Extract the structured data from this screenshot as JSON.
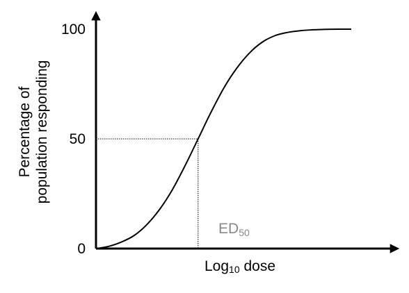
{
  "chart_data": {
    "type": "line",
    "ylabel_lines": [
      "Percentage of",
      "population responding"
    ],
    "xlabel": {
      "base": "Log",
      "sub": "10",
      "rest": " dose"
    },
    "y_ticks": [
      "100",
      "50",
      "0"
    ],
    "y_tick_values": [
      100,
      50,
      0
    ],
    "ylim": [
      0,
      100
    ],
    "xlim": [
      0,
      1
    ],
    "x": [
      0,
      0.05,
      0.1,
      0.15,
      0.2,
      0.25,
      0.3,
      0.35,
      0.4,
      0.45,
      0.5,
      0.55,
      0.6,
      0.65,
      0.7,
      0.75,
      0.8,
      0.85,
      0.9,
      0.95,
      1.0
    ],
    "y": [
      0,
      1,
      3,
      6,
      11,
      18,
      27,
      38,
      50,
      62,
      73,
      82,
      89,
      94,
      97,
      98.5,
      99.3,
      99.7,
      99.9,
      100,
      100
    ],
    "annotation": {
      "base": "ED",
      "sub": "50",
      "x": 0.4,
      "y": 50
    },
    "colors": {
      "curve": "#000000",
      "axes": "#000000",
      "annotation": "#888888"
    },
    "grid": false
  }
}
